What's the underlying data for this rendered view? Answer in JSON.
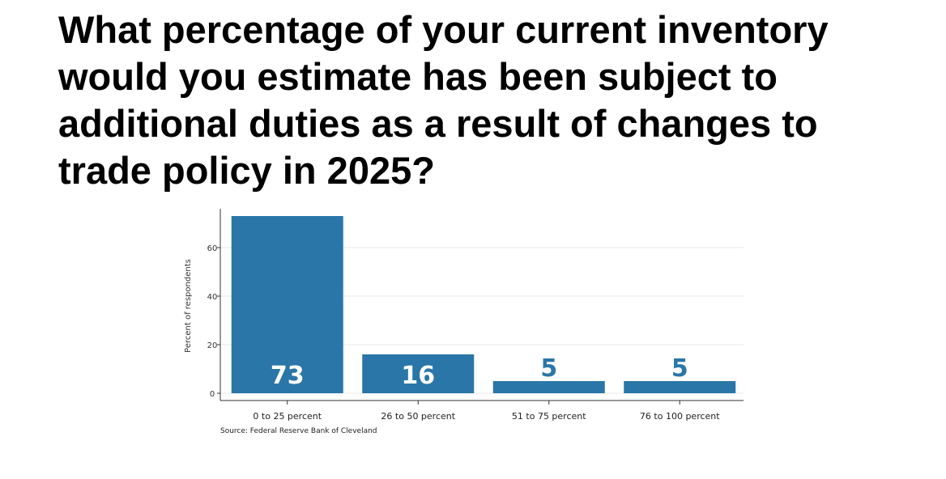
{
  "title": "What percentage of your current inventory would you estimate has been subject to additional duties as a result of changes to trade policy in 2025?",
  "source": "Source: Federal Reserve Bank of Cleveland",
  "colors": {
    "bar": "#2a76a8",
    "grid": "#e9e9e9",
    "axis": "#333333",
    "label_inside": "#ffffff",
    "label_outside": "#2a76a8"
  },
  "chart_data": {
    "type": "bar",
    "categories": [
      "0 to 25 percent",
      "26 to 50 percent",
      "51 to 75 percent",
      "76 to 100 percent"
    ],
    "values": [
      73,
      16,
      5,
      5
    ],
    "data_labels": [
      "73",
      "16",
      "5",
      "5"
    ],
    "title": "What percentage of your current inventory would you estimate has been subject to additional duties as a result of changes to trade policy in 2025?",
    "xlabel": "",
    "ylabel": "Percent of respondents",
    "ylim": [
      0,
      75
    ],
    "yticks": [
      0,
      20,
      40,
      60
    ],
    "grid": true,
    "legend": "none"
  }
}
